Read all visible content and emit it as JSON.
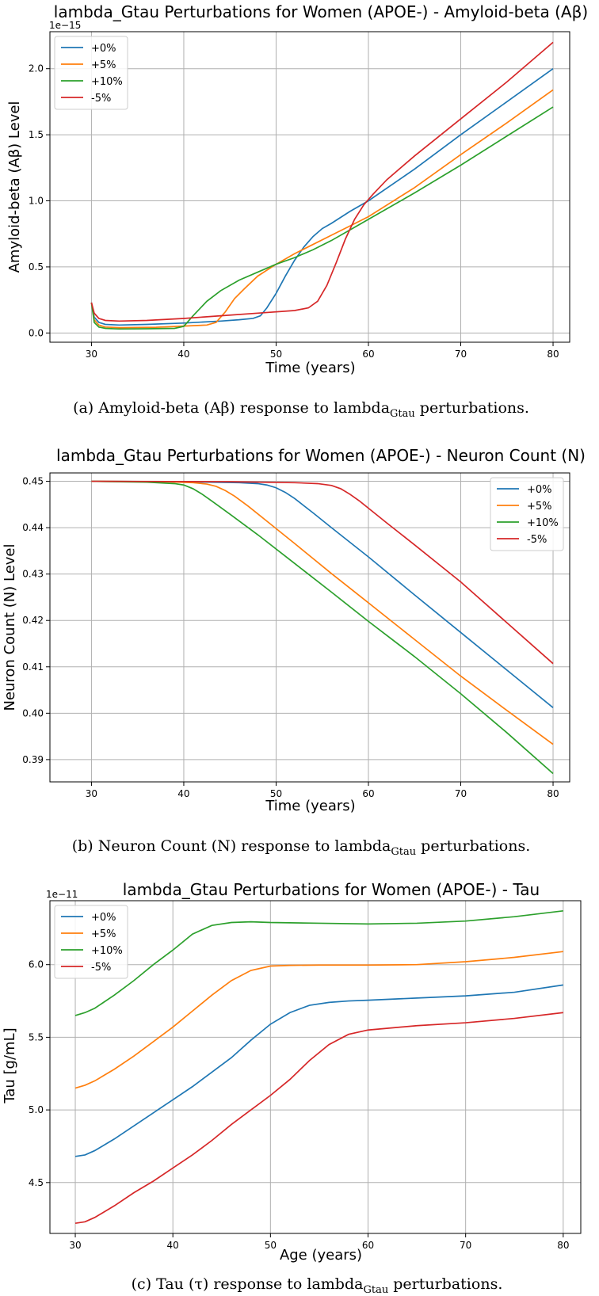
{
  "colors": {
    "plus0": "#1f77b4",
    "plus5": "#ff7f0e",
    "plus10": "#2ca02c",
    "minus5": "#d62728"
  },
  "chart_data": [
    {
      "type": "line",
      "title": "lambda_Gtau Perturbations for Women (APOE-) - Amyloid-beta (Aβ)",
      "xlabel": "Time (years)",
      "ylabel": "Amyloid-beta (Aβ) Level",
      "offset_text": "1e−15",
      "xlim": [
        25.5,
        81.8
      ],
      "ylim": [
        -0.07,
        2.28
      ],
      "xticks": [
        30,
        40,
        50,
        60,
        70,
        80
      ],
      "xtick_labels": [
        "30",
        "40",
        "50",
        "60",
        "70",
        "80"
      ],
      "yticks": [
        0.0,
        0.5,
        1.0,
        1.5,
        2.0
      ],
      "ytick_labels": [
        "0.0",
        "0.5",
        "1.0",
        "1.5",
        "2.0"
      ],
      "grid": true,
      "legend_position": "upper-left",
      "caption": {
        "text": "(a) Amyloid-beta (Aβ) response to lambda",
        "subscript": "Gtau",
        "suffix": " perturbations."
      },
      "series": [
        {
          "name": "+0%",
          "color_key": "plus0",
          "x": [
            30,
            30.3,
            30.8,
            31.5,
            33,
            36,
            40,
            44,
            46,
            47.5,
            48.3,
            49,
            50,
            51,
            52,
            53,
            54,
            55,
            56,
            58,
            60,
            65,
            70,
            75,
            80
          ],
          "y": [
            0.23,
            0.12,
            0.08,
            0.065,
            0.06,
            0.065,
            0.075,
            0.09,
            0.1,
            0.11,
            0.13,
            0.19,
            0.3,
            0.43,
            0.55,
            0.65,
            0.73,
            0.79,
            0.83,
            0.92,
            1.0,
            1.24,
            1.5,
            1.75,
            2.0
          ]
        },
        {
          "name": "+5%",
          "color_key": "plus5",
          "x": [
            30,
            30.3,
            30.8,
            31.5,
            33,
            37,
            41,
            42.5,
            43.5,
            44.5,
            45.5,
            46.5,
            48,
            50,
            52,
            54,
            56,
            58,
            60,
            65,
            70,
            75,
            80
          ],
          "y": [
            0.23,
            0.1,
            0.06,
            0.045,
            0.04,
            0.043,
            0.055,
            0.06,
            0.08,
            0.16,
            0.26,
            0.33,
            0.43,
            0.52,
            0.6,
            0.67,
            0.74,
            0.81,
            0.88,
            1.1,
            1.35,
            1.59,
            1.84
          ]
        },
        {
          "name": "+10%",
          "color_key": "plus10",
          "x": [
            30,
            30.3,
            30.8,
            31.5,
            33,
            36,
            39,
            40,
            41,
            42.5,
            44,
            46,
            48,
            50,
            52,
            54,
            56,
            58,
            60,
            65,
            70,
            75,
            80
          ],
          "y": [
            0.23,
            0.08,
            0.045,
            0.035,
            0.03,
            0.032,
            0.035,
            0.05,
            0.13,
            0.24,
            0.32,
            0.4,
            0.46,
            0.52,
            0.57,
            0.63,
            0.7,
            0.78,
            0.86,
            1.06,
            1.27,
            1.49,
            1.71
          ]
        },
        {
          "name": "-5%",
          "color_key": "minus5",
          "x": [
            30,
            30.3,
            30.8,
            31.5,
            33,
            36,
            40,
            44,
            48,
            52,
            53.5,
            54.5,
            55.5,
            56.5,
            57.5,
            58.5,
            59.5,
            60.5,
            62,
            65,
            70,
            75,
            80
          ],
          "y": [
            0.23,
            0.15,
            0.11,
            0.095,
            0.09,
            0.095,
            0.11,
            0.13,
            0.15,
            0.17,
            0.19,
            0.24,
            0.36,
            0.53,
            0.71,
            0.86,
            0.97,
            1.05,
            1.16,
            1.34,
            1.62,
            1.9,
            2.2
          ]
        }
      ]
    },
    {
      "type": "line",
      "title": "lambda_Gtau Perturbations for Women (APOE-) - Neuron Count (N)",
      "xlabel": "Time (years)",
      "ylabel": "Neuron Count (N) Level",
      "offset_text": "",
      "xlim": [
        25.5,
        81.8
      ],
      "ylim": [
        0.3852,
        0.4518
      ],
      "xticks": [
        30,
        40,
        50,
        60,
        70,
        80
      ],
      "xtick_labels": [
        "30",
        "40",
        "50",
        "60",
        "70",
        "80"
      ],
      "yticks": [
        0.39,
        0.4,
        0.41,
        0.42,
        0.43,
        0.44,
        0.45
      ],
      "ytick_labels": [
        "0.39",
        "0.40",
        "0.41",
        "0.42",
        "0.43",
        "0.44",
        "0.45"
      ],
      "grid": true,
      "legend_position": "upper-right",
      "caption": {
        "text": "(b) Neuron Count (N) response to lambda",
        "subscript": "Gtau",
        "suffix": " perturbations."
      },
      "series": [
        {
          "name": "+0%",
          "color_key": "plus0",
          "x": [
            30,
            40,
            46,
            48,
            49,
            50,
            51,
            52,
            54,
            56,
            60,
            65,
            70,
            75,
            80
          ],
          "y": [
            0.45,
            0.4499,
            0.4497,
            0.4495,
            0.4492,
            0.4486,
            0.4476,
            0.4463,
            0.4432,
            0.44,
            0.4337,
            0.4255,
            0.4174,
            0.4093,
            0.4012
          ]
        },
        {
          "name": "+5%",
          "color_key": "plus5",
          "x": [
            30,
            38,
            41,
            42.5,
            43.5,
            44.5,
            45.5,
            47,
            49,
            52,
            56,
            60,
            65,
            70,
            75,
            80
          ],
          "y": [
            0.45,
            0.4499,
            0.4497,
            0.4494,
            0.4489,
            0.448,
            0.4468,
            0.4446,
            0.4414,
            0.4366,
            0.4301,
            0.4238,
            0.4159,
            0.408,
            0.4006,
            0.3933
          ]
        },
        {
          "name": "+10%",
          "color_key": "plus10",
          "x": [
            30,
            36,
            39,
            40,
            41,
            42,
            43,
            45,
            48,
            52,
            56,
            60,
            65,
            70,
            75,
            80
          ],
          "y": [
            0.45,
            0.4498,
            0.4495,
            0.4492,
            0.4484,
            0.4472,
            0.4458,
            0.4429,
            0.4385,
            0.4323,
            0.4261,
            0.4198,
            0.4122,
            0.4042,
            0.3958,
            0.387
          ]
        },
        {
          "name": "-5%",
          "color_key": "minus5",
          "x": [
            30,
            45,
            52,
            54.5,
            56,
            57,
            58,
            59,
            60,
            62,
            65,
            70,
            75,
            80
          ],
          "y": [
            0.45,
            0.4499,
            0.4497,
            0.4495,
            0.4491,
            0.4484,
            0.4472,
            0.4458,
            0.4442,
            0.441,
            0.4363,
            0.4283,
            0.4195,
            0.4107
          ]
        }
      ]
    },
    {
      "type": "line",
      "title": "lambda_Gtau Perturbations for Women (APOE-) - Tau",
      "xlabel": "Age (years)",
      "ylabel": "Tau [g/mL]",
      "offset_text": "1e−11",
      "xlim": [
        27.4,
        81.8
      ],
      "ylim": [
        4.15,
        6.44
      ],
      "xticks": [
        30,
        40,
        50,
        60,
        70,
        80
      ],
      "xtick_labels": [
        "30",
        "40",
        "50",
        "60",
        "70",
        "80"
      ],
      "yticks": [
        4.5,
        5.0,
        5.5,
        6.0
      ],
      "ytick_labels": [
        "4.5",
        "5.0",
        "5.5",
        "6.0"
      ],
      "grid": true,
      "legend_position": "upper-left",
      "caption": {
        "text": "(c) Tau (τ) response to lambda",
        "subscript": "Gtau",
        "suffix": " perturbations."
      },
      "series": [
        {
          "name": "+0%",
          "color_key": "plus0",
          "x": [
            30,
            31,
            32,
            34,
            36,
            38,
            40,
            42,
            44,
            46,
            48,
            50,
            52,
            54,
            56,
            58,
            60,
            65,
            70,
            75,
            80
          ],
          "y": [
            4.68,
            4.69,
            4.72,
            4.8,
            4.89,
            4.98,
            5.07,
            5.16,
            5.26,
            5.36,
            5.48,
            5.59,
            5.67,
            5.72,
            5.74,
            5.75,
            5.755,
            5.77,
            5.785,
            5.81,
            5.86
          ]
        },
        {
          "name": "+5%",
          "color_key": "plus5",
          "x": [
            30,
            31,
            32,
            34,
            36,
            38,
            40,
            42,
            44,
            46,
            48,
            50,
            52,
            55,
            60,
            65,
            70,
            75,
            80
          ],
          "y": [
            5.15,
            5.17,
            5.2,
            5.28,
            5.37,
            5.47,
            5.57,
            5.68,
            5.79,
            5.89,
            5.96,
            5.99,
            5.995,
            5.997,
            5.997,
            6.0,
            6.02,
            6.05,
            6.09
          ]
        },
        {
          "name": "+10%",
          "color_key": "plus10",
          "x": [
            30,
            31,
            32,
            34,
            36,
            38,
            40,
            42,
            44,
            46,
            48,
            50,
            55,
            60,
            65,
            70,
            75,
            80
          ],
          "y": [
            5.65,
            5.67,
            5.7,
            5.79,
            5.89,
            6.0,
            6.1,
            6.21,
            6.27,
            6.29,
            6.295,
            6.29,
            6.285,
            6.28,
            6.285,
            6.3,
            6.33,
            6.37
          ]
        },
        {
          "name": "-5%",
          "color_key": "minus5",
          "x": [
            30,
            31,
            32,
            34,
            36,
            38,
            40,
            42,
            44,
            46,
            48,
            50,
            52,
            54,
            56,
            58,
            60,
            65,
            70,
            75,
            80
          ],
          "y": [
            4.22,
            4.23,
            4.26,
            4.34,
            4.43,
            4.51,
            4.6,
            4.69,
            4.79,
            4.9,
            5.0,
            5.1,
            5.21,
            5.34,
            5.45,
            5.52,
            5.55,
            5.58,
            5.6,
            5.63,
            5.67
          ]
        }
      ]
    }
  ]
}
